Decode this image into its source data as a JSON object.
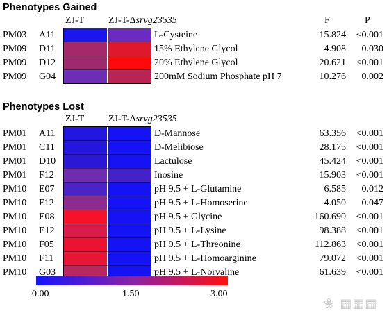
{
  "gained": {
    "title": "Phenotypes Gained",
    "col_left": "ZJ-T",
    "col_right_prefix": "ZJ-T-Δ",
    "col_right_italic": "srvg23535",
    "f_label": "F",
    "p_label": "P",
    "rows": [
      {
        "plate": "PM03",
        "well": "A11",
        "desc": "L-Cysteine",
        "f": "15.824",
        "p": "<0.001",
        "c1": "#1a16ee",
        "c2": "#6b2ac0"
      },
      {
        "plate": "PM09",
        "well": "D11",
        "desc": "15% Ethylene Glycol",
        "f": "4.908",
        "p": "0.030",
        "c1": "#a4286a",
        "c2": "#e0182e"
      },
      {
        "plate": "PM09",
        "well": "D12",
        "desc": "20% Ethylene Glycol",
        "f": "20.621",
        "p": "<0.001",
        "c1": "#9e2a6e",
        "c2": "#ff0a0a"
      },
      {
        "plate": "PM09",
        "well": "G04",
        "desc": "200mM Sodium Phosphate pH 7",
        "f": "10.276",
        "p": "0.002",
        "c1": "#6e2eb4",
        "c2": "#b82454"
      }
    ]
  },
  "lost": {
    "title": "Phenotypes Lost",
    "col_left": "ZJ-T",
    "col_right_prefix": "ZJ-T-Δ",
    "col_right_italic": "srvg23535",
    "rows": [
      {
        "plate": "PM01",
        "well": "A11",
        "desc": "D-Mannose",
        "f": "63.356",
        "p": "<0.001",
        "c1": "#2216e0",
        "c2": "#1512f4"
      },
      {
        "plate": "PM01",
        "well": "C11",
        "desc": "D-Melibiose",
        "f": "28.175",
        "p": "<0.001",
        "c1": "#2416dc",
        "c2": "#1512f4"
      },
      {
        "plate": "PM01",
        "well": "D10",
        "desc": "Lactulose",
        "f": "45.424",
        "p": "<0.001",
        "c1": "#2a18d6",
        "c2": "#1512f4"
      },
      {
        "plate": "PM01",
        "well": "F12",
        "desc": "Inosine",
        "f": "15.903",
        "p": "<0.001",
        "c1": "#6e2cae",
        "c2": "#4422c8"
      },
      {
        "plate": "PM10",
        "well": "E07",
        "desc": "pH 9.5 + L-Glutamine",
        "f": "6.585",
        "p": "0.012",
        "c1": "#4a24c6",
        "c2": "#1512f4"
      },
      {
        "plate": "PM10",
        "well": "F12",
        "desc": "pH 9.5 + L-Homoserine",
        "f": "4.050",
        "p": "0.047",
        "c1": "#8c2c8e",
        "c2": "#1512f4"
      },
      {
        "plate": "PM10",
        "well": "E08",
        "desc": "pH 9.5 + Glycine",
        "f": "160.690",
        "p": "<0.001",
        "c1": "#f5122a",
        "c2": "#1512f4"
      },
      {
        "plate": "PM10",
        "well": "E12",
        "desc": "pH 9.5 + L-Lysine",
        "f": "98.388",
        "p": "<0.001",
        "c1": "#d91c4a",
        "c2": "#1512f4"
      },
      {
        "plate": "PM10",
        "well": "F05",
        "desc": "pH 9.5 + L-Threonine",
        "f": "112.863",
        "p": "<0.001",
        "c1": "#ec1232",
        "c2": "#1512f4"
      },
      {
        "plate": "PM10",
        "well": "F11",
        "desc": "pH 9.5 + L-Homoarginine",
        "f": "79.072",
        "p": "<0.001",
        "c1": "#e81636",
        "c2": "#1512f4"
      },
      {
        "plate": "PM10",
        "well": "G03",
        "desc": "pH 9.5 + L-Norvaline",
        "f": "61.639",
        "p": "<0.001",
        "c1": "#b8285e",
        "c2": "#1512f4"
      }
    ]
  },
  "colorbar": {
    "ticks": [
      "0.00",
      "1.50",
      "3.00"
    ],
    "low_color": "#1414ff",
    "mid_color": "#8a22a6",
    "high_color": "#ff1010"
  }
}
